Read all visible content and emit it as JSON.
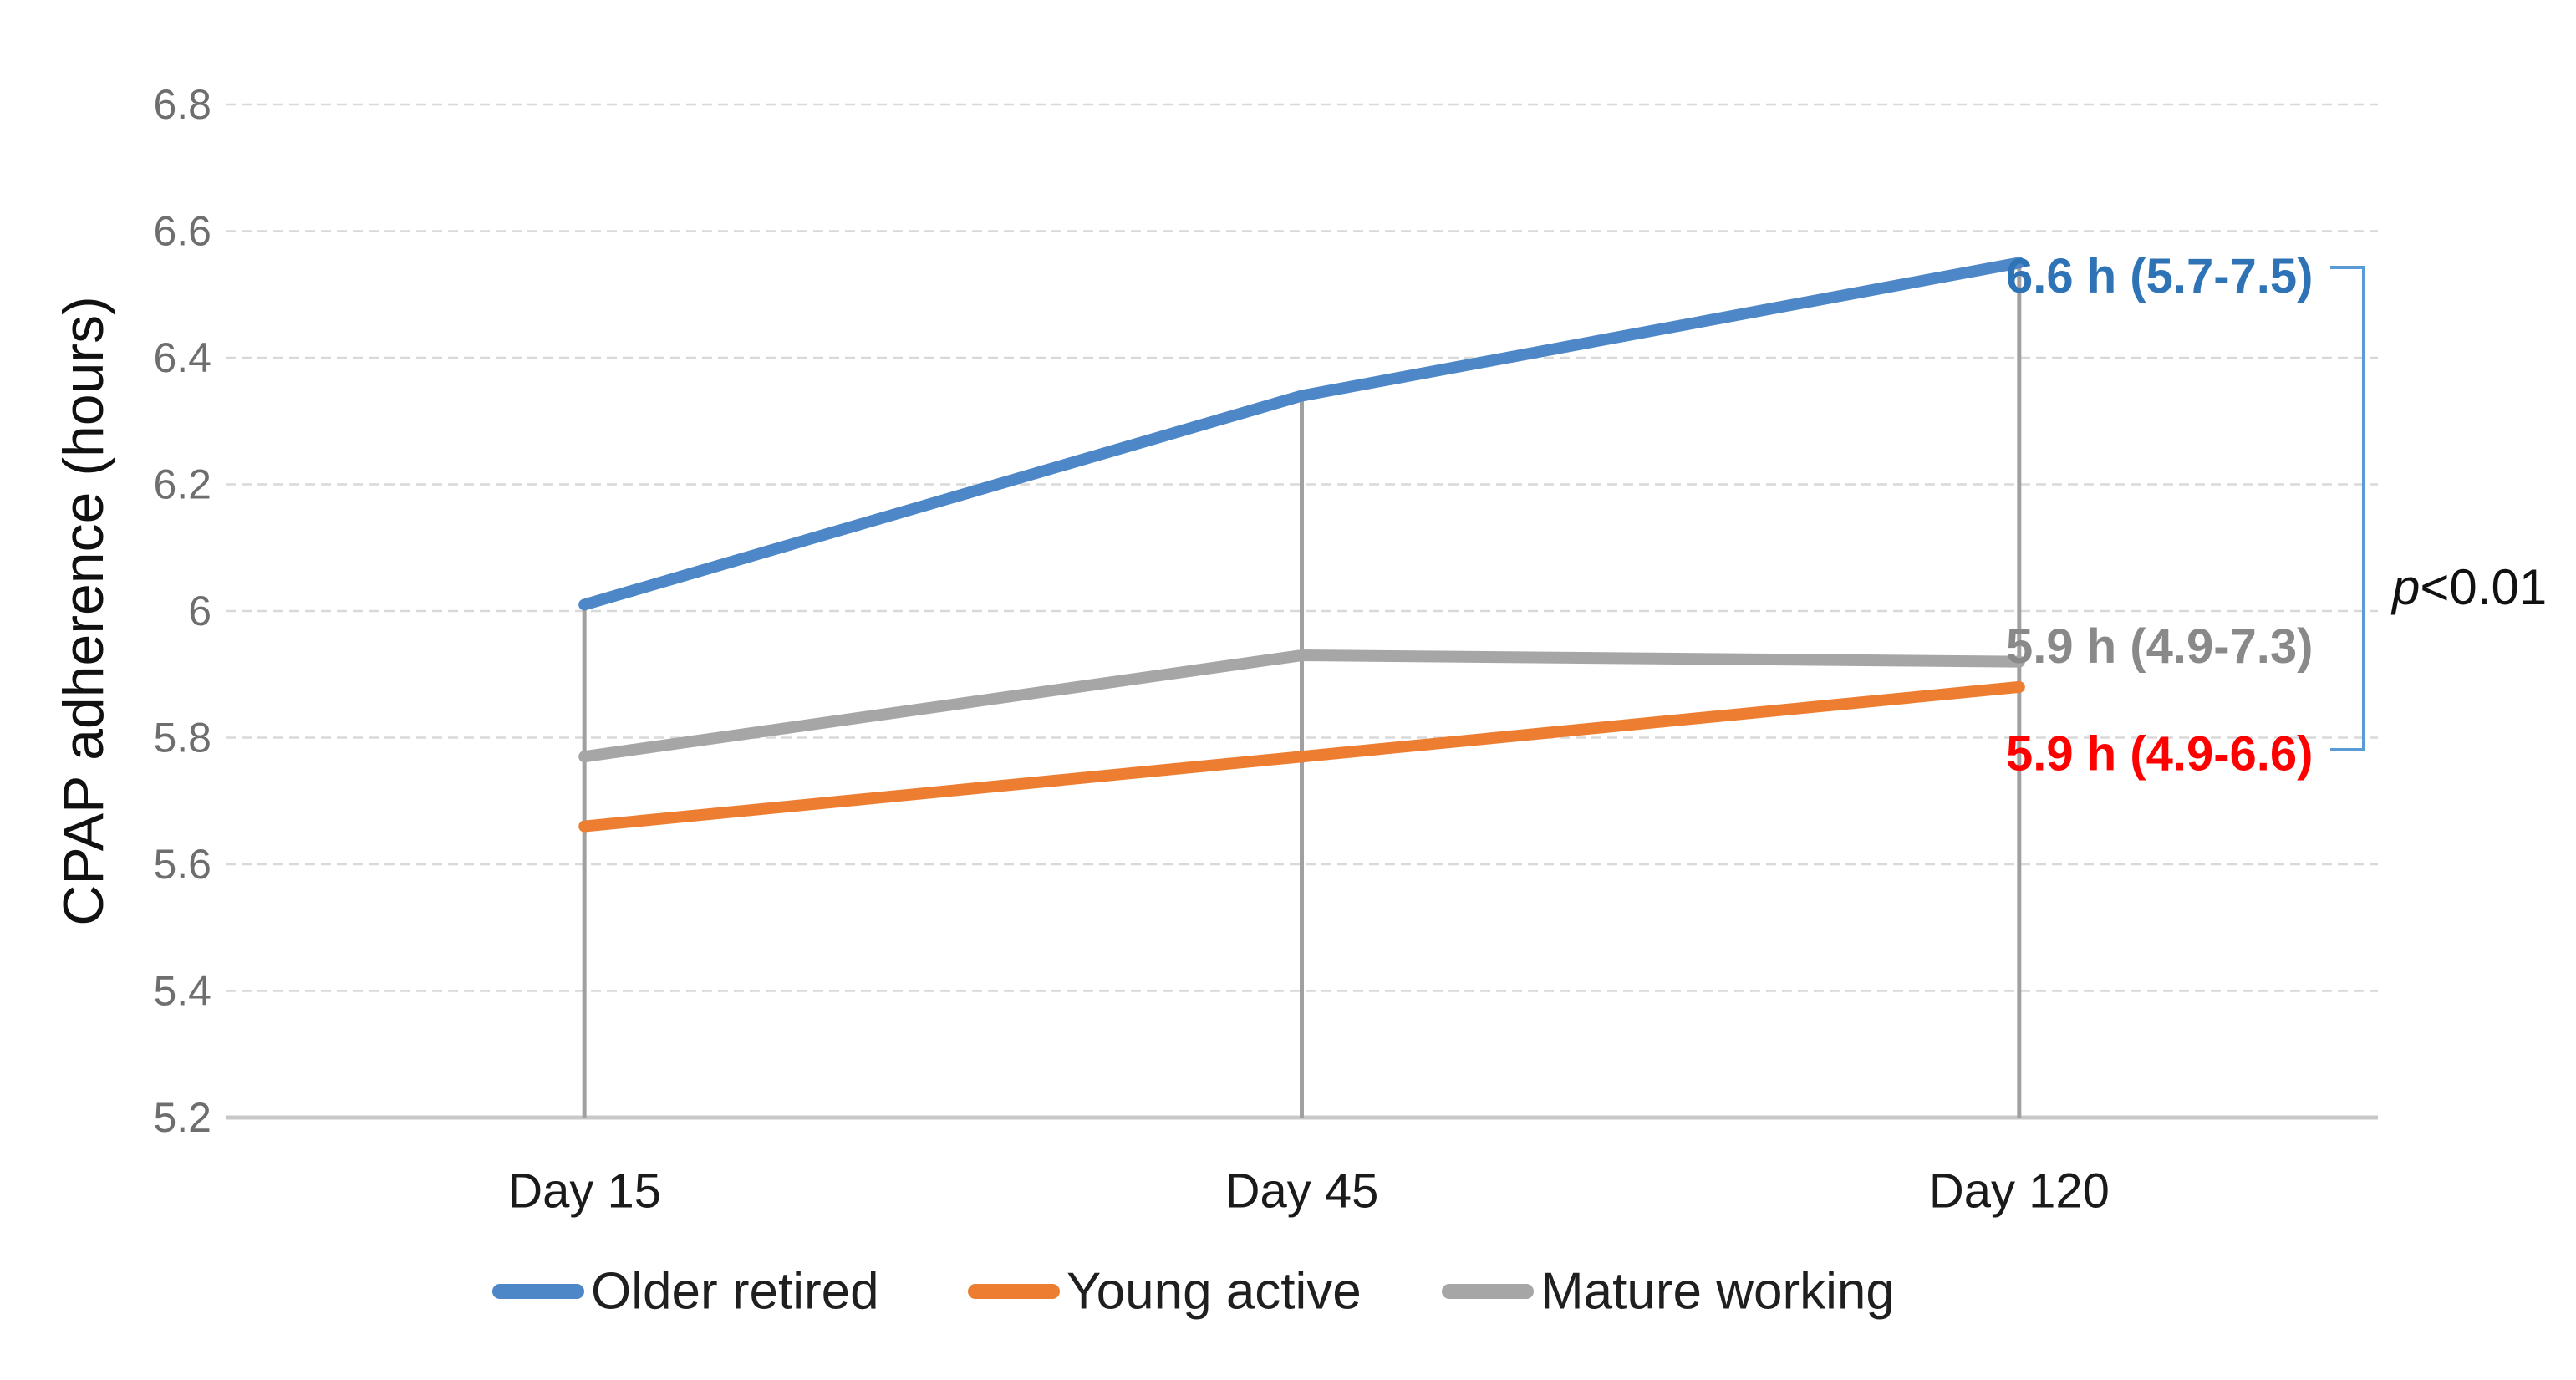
{
  "chart_data": {
    "type": "line",
    "title": "",
    "xlabel": "",
    "ylabel": "CPAP adherence (hours)",
    "categories": [
      "Day 15",
      "Day 45",
      "Day 120"
    ],
    "series": [
      {
        "name": "Older retired",
        "color": "#4e87c7",
        "values": [
          6.01,
          6.34,
          6.55
        ],
        "end_label": "6.6 h (5.7-7.5)",
        "end_label_color": "#2e73b5"
      },
      {
        "name": "Young active",
        "color": "#ed7d31",
        "values": [
          5.66,
          5.77,
          5.88
        ],
        "end_label": "5.9 h (4.9-6.6)",
        "end_label_color": "#ff0000"
      },
      {
        "name": "Mature working",
        "color": "#a6a6a6",
        "values": [
          5.77,
          5.93,
          5.92
        ],
        "end_label": "5.9 h (4.9-7.3)",
        "end_label_color": "#898989"
      }
    ],
    "ylim": [
      5.2,
      6.8
    ],
    "ytick_labels": [
      "5.2",
      "5.4",
      "5.6",
      "5.8",
      "6",
      "6.2",
      "6.4",
      "6.6",
      "6.8"
    ],
    "ytick_values": [
      5.2,
      5.4,
      5.6,
      5.8,
      6.0,
      6.2,
      6.4,
      6.6,
      6.8
    ],
    "grid": true,
    "drop_lines": true,
    "legend_position": "bottom",
    "annotation": {
      "prefix": "p",
      "rest": "<0.01"
    }
  },
  "colors": {
    "gridline": "#d9d9d9",
    "axis_line": "#c8c8c8",
    "drop_line": "#a0a0a0",
    "bracket": "#5b9bd5",
    "ytick_text": "#6e6e6e",
    "xtick_text": "#1a1a1a",
    "legend_text": "#1f1f1f",
    "axis_title_text": "#111111",
    "annotation_text": "#111111"
  }
}
